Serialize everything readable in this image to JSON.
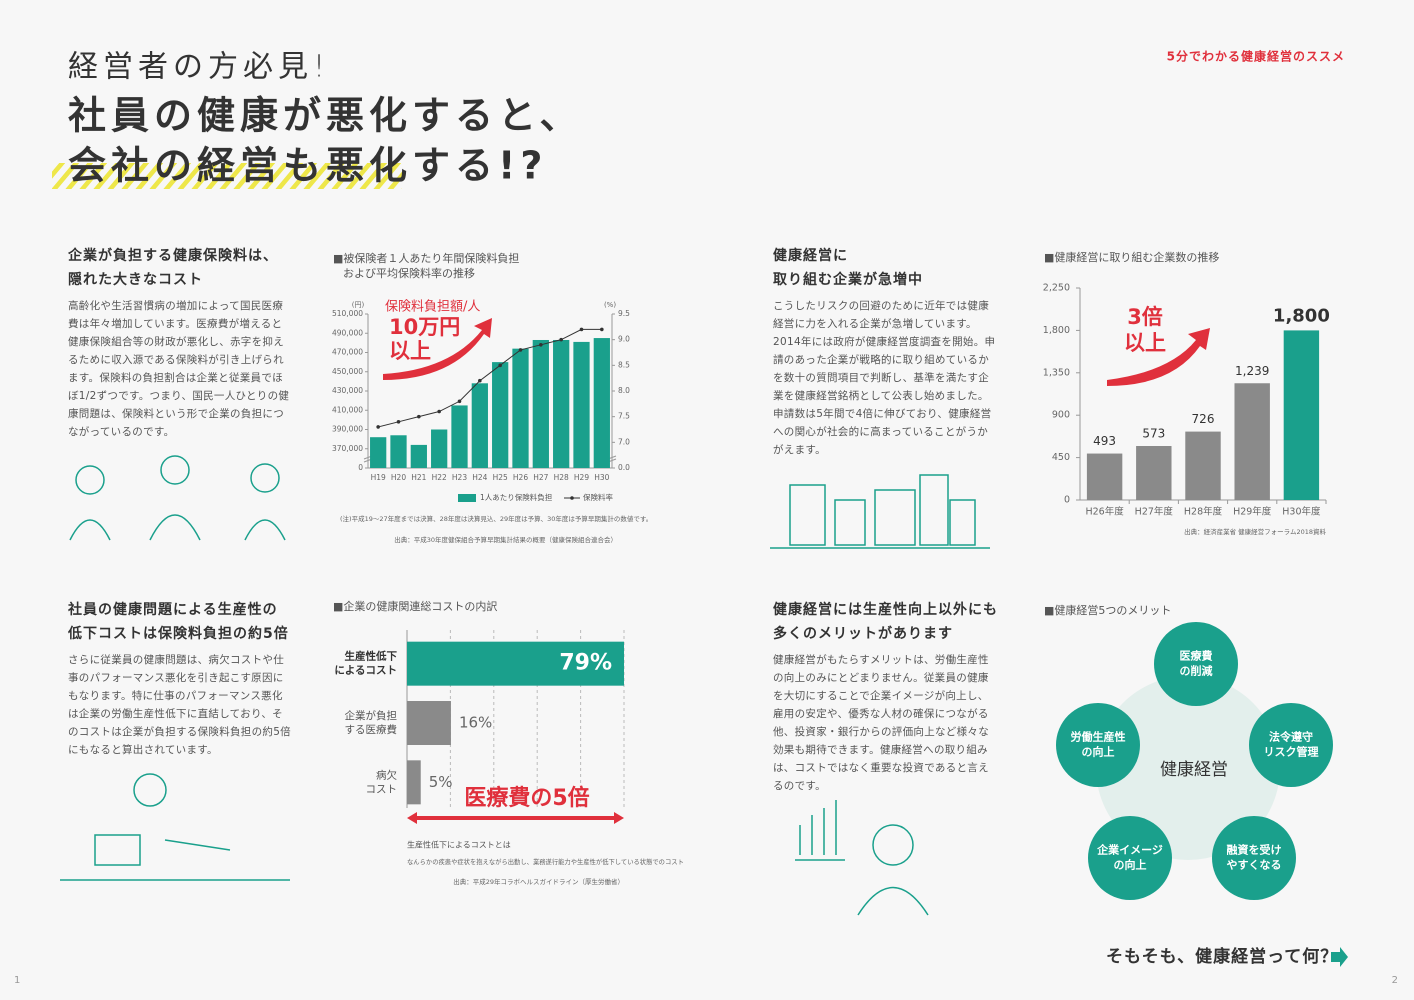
{
  "header": {
    "tagline": "経営者の方必見!",
    "title": [
      "社員の健康が悪化すると、",
      "会社の経営も悪化する!?"
    ],
    "series": "5分でわかる健康経営のススメ"
  },
  "sections": [
    {
      "heading": [
        "企業が負担する健康保険料は、",
        "隠れた大きなコスト"
      ],
      "body": "高齢化や生活習慣病の増加によって国民医療費は年々増加しています。医療費が増えると健康保険組合等の財政が悪化し、赤字を抑えるために収入源である保険料が引き上げられます。保険料の負担割合は企業と従業員でほぼ1/2ずつです。つまり、国民一人ひとりの健康問題は、保険料という形で企業の負担につながっているのです。"
    },
    {
      "heading": [
        "社員の健康問題による生産性の",
        "低下コストは保険料負担の約5倍"
      ],
      "body": "さらに従業員の健康問題は、病欠コストや仕事のパフォーマンス悪化を引き起こす原因にもなります。特に仕事のパフォーマンス悪化は企業の労働生産性低下に直結しており、そのコストは企業が負担する保険料負担の約5倍にもなると算出されています。"
    },
    {
      "heading": [
        "健康経営に",
        "取り組む企業が急増中"
      ],
      "body": "こうしたリスクの回避のために近年では健康経営に力を入れる企業が急増しています。2014年には政府が健康経営度調査を開始。申請のあった企業が戦略的に取り組めているかを数十の質問項目で判断し、基準を満たす企業を健康経営銘柄として公表し始めました。申請数は5年間で4倍に伸びており、健康経営への関心が社会的に高まっていることがうかがえます。"
    },
    {
      "heading": [
        "健康経営には生産性向上以外にも",
        "多くのメリットがあります"
      ],
      "body": "健康経営がもたらすメリットは、労働生産性の向上のみにとどまりません。従業員の健康を大切にすることで企業イメージが向上し、雇用の安定や、優秀な人材の確保につながる他、投資家・銀行からの評価向上など様々な効果も期待できます。健康経営への取り組みは、コストではなく重要な投資であると言えるのです。"
    }
  ],
  "chart_data": [
    {
      "type": "combo",
      "title": [
        "■被保険者１人あたり年間保険料負担",
        "および平均保険料率の推移"
      ],
      "y_unit": "(円)",
      "y2_unit": "(%)",
      "annotation": [
        "保険料負担額/人",
        "10万円",
        "以上"
      ],
      "categories": [
        "H19",
        "H20",
        "H21",
        "H22",
        "H23",
        "H24",
        "H25",
        "H26",
        "H27",
        "H28",
        "H29",
        "H30"
      ],
      "series": [
        {
          "name": "1人あたり保険料負担",
          "color": "#1aa08c",
          "type": "bar",
          "values": [
            382000,
            384000,
            374000,
            390000,
            415000,
            438000,
            460000,
            474000,
            483000,
            483000,
            481000,
            485000
          ]
        },
        {
          "name": "保険料率",
          "color": "#333333",
          "type": "line",
          "axis": "y2",
          "values": [
            7.3,
            7.4,
            7.5,
            7.6,
            7.8,
            8.2,
            8.5,
            8.8,
            8.9,
            9.0,
            9.2,
            9.2
          ]
        }
      ],
      "axis_break": true,
      "ylim": [
        350000,
        510000
      ],
      "yticks": [
        0,
        {
          "value": 370000,
          "label": "370,000"
        },
        {
          "value": 390000,
          "label": "390,000"
        },
        {
          "value": 410000,
          "label": "410,000"
        },
        {
          "value": 430000,
          "label": "430,000"
        },
        {
          "value": 450000,
          "label": "450,000"
        },
        {
          "value": 470000,
          "label": "470,000"
        },
        {
          "value": 490000,
          "label": "490,000"
        },
        {
          "value": 510000,
          "label": "510,000"
        }
      ],
      "y2lim": [
        6.5,
        9.5
      ],
      "y2ticks": [
        {
          "value": 0,
          "label": "0.0"
        },
        {
          "value": 7,
          "label": "7.0"
        },
        7.5,
        {
          "value": 8,
          "label": "8.0"
        },
        8.5,
        {
          "value": 9,
          "label": "9.0"
        },
        9.5
      ],
      "note": "(注)平成19〜27年度までは決算、28年度は決算見込、29年度は予算、30年度は予算早期集計の数値です。",
      "source": "出典：平成30年度健保組合予算早期集計結果の概要（健康保険組合連合会）"
    },
    {
      "type": "bar",
      "title": "■健康経営に取り組む企業数の推移",
      "annotation": [
        "3倍",
        "以上"
      ],
      "categories": [
        "H26年度",
        "H27年度",
        "H28年度",
        "H29年度",
        "H30年度"
      ],
      "values": [
        493,
        573,
        726,
        1239,
        1800
      ],
      "value_labels": [
        "493",
        "573",
        "726",
        "1,239",
        "1,800"
      ],
      "colors": [
        "#8a8a8a",
        "#8a8a8a",
        "#8a8a8a",
        "#8a8a8a",
        "#1aa08c"
      ],
      "ylim": [
        0,
        2250
      ],
      "yticks": [
        0,
        450,
        900,
        {
          "value": 1350,
          "label": "1,350"
        },
        {
          "value": 1800,
          "label": "1,800"
        },
        {
          "value": 2250,
          "label": "2,250"
        }
      ],
      "source": "出典：経済産業省 健康経営フォーラム2018資料"
    },
    {
      "type": "barh",
      "title": "■企業の健康関連総コストの内訳",
      "categories": [
        "生産性低下\nによるコスト",
        "企業が負担\nする医療費",
        "病欠\nコスト"
      ],
      "values": [
        79,
        16,
        5
      ],
      "value_labels": [
        "79%",
        "16%",
        "5%"
      ],
      "colors": [
        "#1aa08c",
        "#8a8a8a",
        "#8a8a8a"
      ],
      "xlim": [
        0,
        79
      ],
      "annotation": "医療費の5倍",
      "note_title": "生産性低下によるコストとは",
      "note": "なんらかの疾患や症状を抱えながら出勤し、業務遂行能力や生産性が低下している状態でのコスト",
      "source": "出典：平成29年コラボヘルスガイドライン（厚生労働省）"
    }
  ],
  "diagram": {
    "title": "■健康経営5つのメリット",
    "center": "健康経営",
    "nodes": [
      {
        "label": "医療費\nの削減"
      },
      {
        "label": "法令遵守\nリスク管理"
      },
      {
        "label": "融資を受け\nやすくなる"
      },
      {
        "label": "企業イメージ\nの向上"
      },
      {
        "label": "労働生産性\nの向上"
      }
    ]
  },
  "footer": {
    "cta": "そもそも、健康経営って何？",
    "page_left": "1",
    "page_right": "2"
  }
}
